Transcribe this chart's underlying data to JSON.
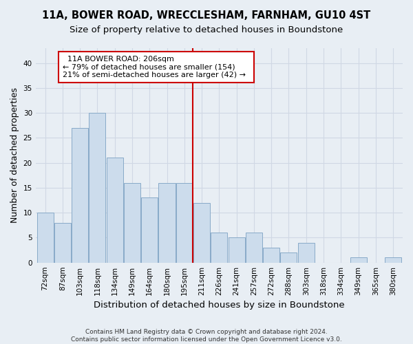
{
  "title_line1": "11A, BOWER ROAD, WRECCLESHAM, FARNHAM, GU10 4ST",
  "title_line2": "Size of property relative to detached houses in Boundstone",
  "xlabel": "Distribution of detached houses by size in Boundstone",
  "ylabel": "Number of detached properties",
  "footnote1": "Contains HM Land Registry data © Crown copyright and database right 2024.",
  "footnote2": "Contains public sector information licensed under the Open Government Licence v3.0.",
  "categories": [
    "72sqm",
    "87sqm",
    "103sqm",
    "118sqm",
    "134sqm",
    "149sqm",
    "164sqm",
    "180sqm",
    "195sqm",
    "211sqm",
    "226sqm",
    "241sqm",
    "257sqm",
    "272sqm",
    "288sqm",
    "303sqm",
    "318sqm",
    "334sqm",
    "349sqm",
    "365sqm",
    "380sqm"
  ],
  "values": [
    10,
    8,
    27,
    30,
    21,
    16,
    13,
    16,
    16,
    12,
    6,
    5,
    6,
    3,
    2,
    4,
    0,
    0,
    1,
    0,
    1
  ],
  "bar_color": "#ccdcec",
  "bar_edge_color": "#88aac8",
  "subject_line_label": "11A BOWER ROAD: 206sqm",
  "annotation_line1": "← 79% of detached houses are smaller (154)",
  "annotation_line2": "21% of semi-detached houses are larger (42) →",
  "annotation_box_color": "#ffffff",
  "annotation_box_edge_color": "#cc0000",
  "vline_color": "#cc0000",
  "vline_x_index": 8.5,
  "ylim": [
    0,
    43
  ],
  "yticks": [
    0,
    5,
    10,
    15,
    20,
    25,
    30,
    35,
    40
  ],
  "grid_color": "#d0d8e4",
  "background_color": "#e8eef4",
  "title_fontsize": 10.5,
  "subtitle_fontsize": 9.5,
  "axis_label_fontsize": 9,
  "tick_fontsize": 7.5,
  "annotation_fontsize": 8,
  "footnote_fontsize": 6.5
}
